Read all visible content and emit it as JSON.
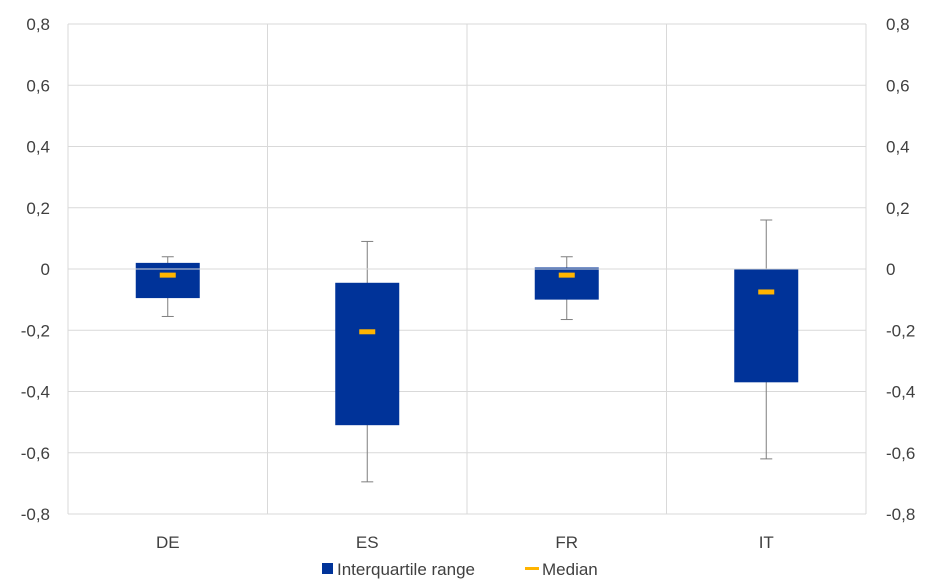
{
  "chart_data": {
    "type": "box",
    "title": "",
    "xlabel": "",
    "ylabel": "",
    "ylim": [
      -0.8,
      0.8
    ],
    "yticks": [
      "-0,8",
      "-0,6",
      "-0,4",
      "-0,2",
      "0",
      "0,2",
      "0,4",
      "0,6",
      "0,8"
    ],
    "yticks_values": [
      -0.8,
      -0.6,
      -0.4,
      -0.2,
      0,
      0.2,
      0.4,
      0.6,
      0.8
    ],
    "categories": [
      "DE",
      "ES",
      "FR",
      "IT"
    ],
    "series": [
      {
        "name": "Interquartile range",
        "color": "#003399",
        "q1": [
          -0.095,
          -0.51,
          -0.1,
          -0.37
        ],
        "q3": [
          0.02,
          -0.045,
          0.005,
          0.0
        ]
      },
      {
        "name": "Median",
        "color": "#FFB400",
        "values": [
          -0.02,
          -0.205,
          -0.02,
          -0.075
        ]
      }
    ],
    "whisker_low": [
      -0.155,
      -0.695,
      -0.165,
      -0.62
    ],
    "whisker_high": [
      0.04,
      0.09,
      0.04,
      0.16
    ],
    "grid": true,
    "legend_position": "bottom"
  }
}
